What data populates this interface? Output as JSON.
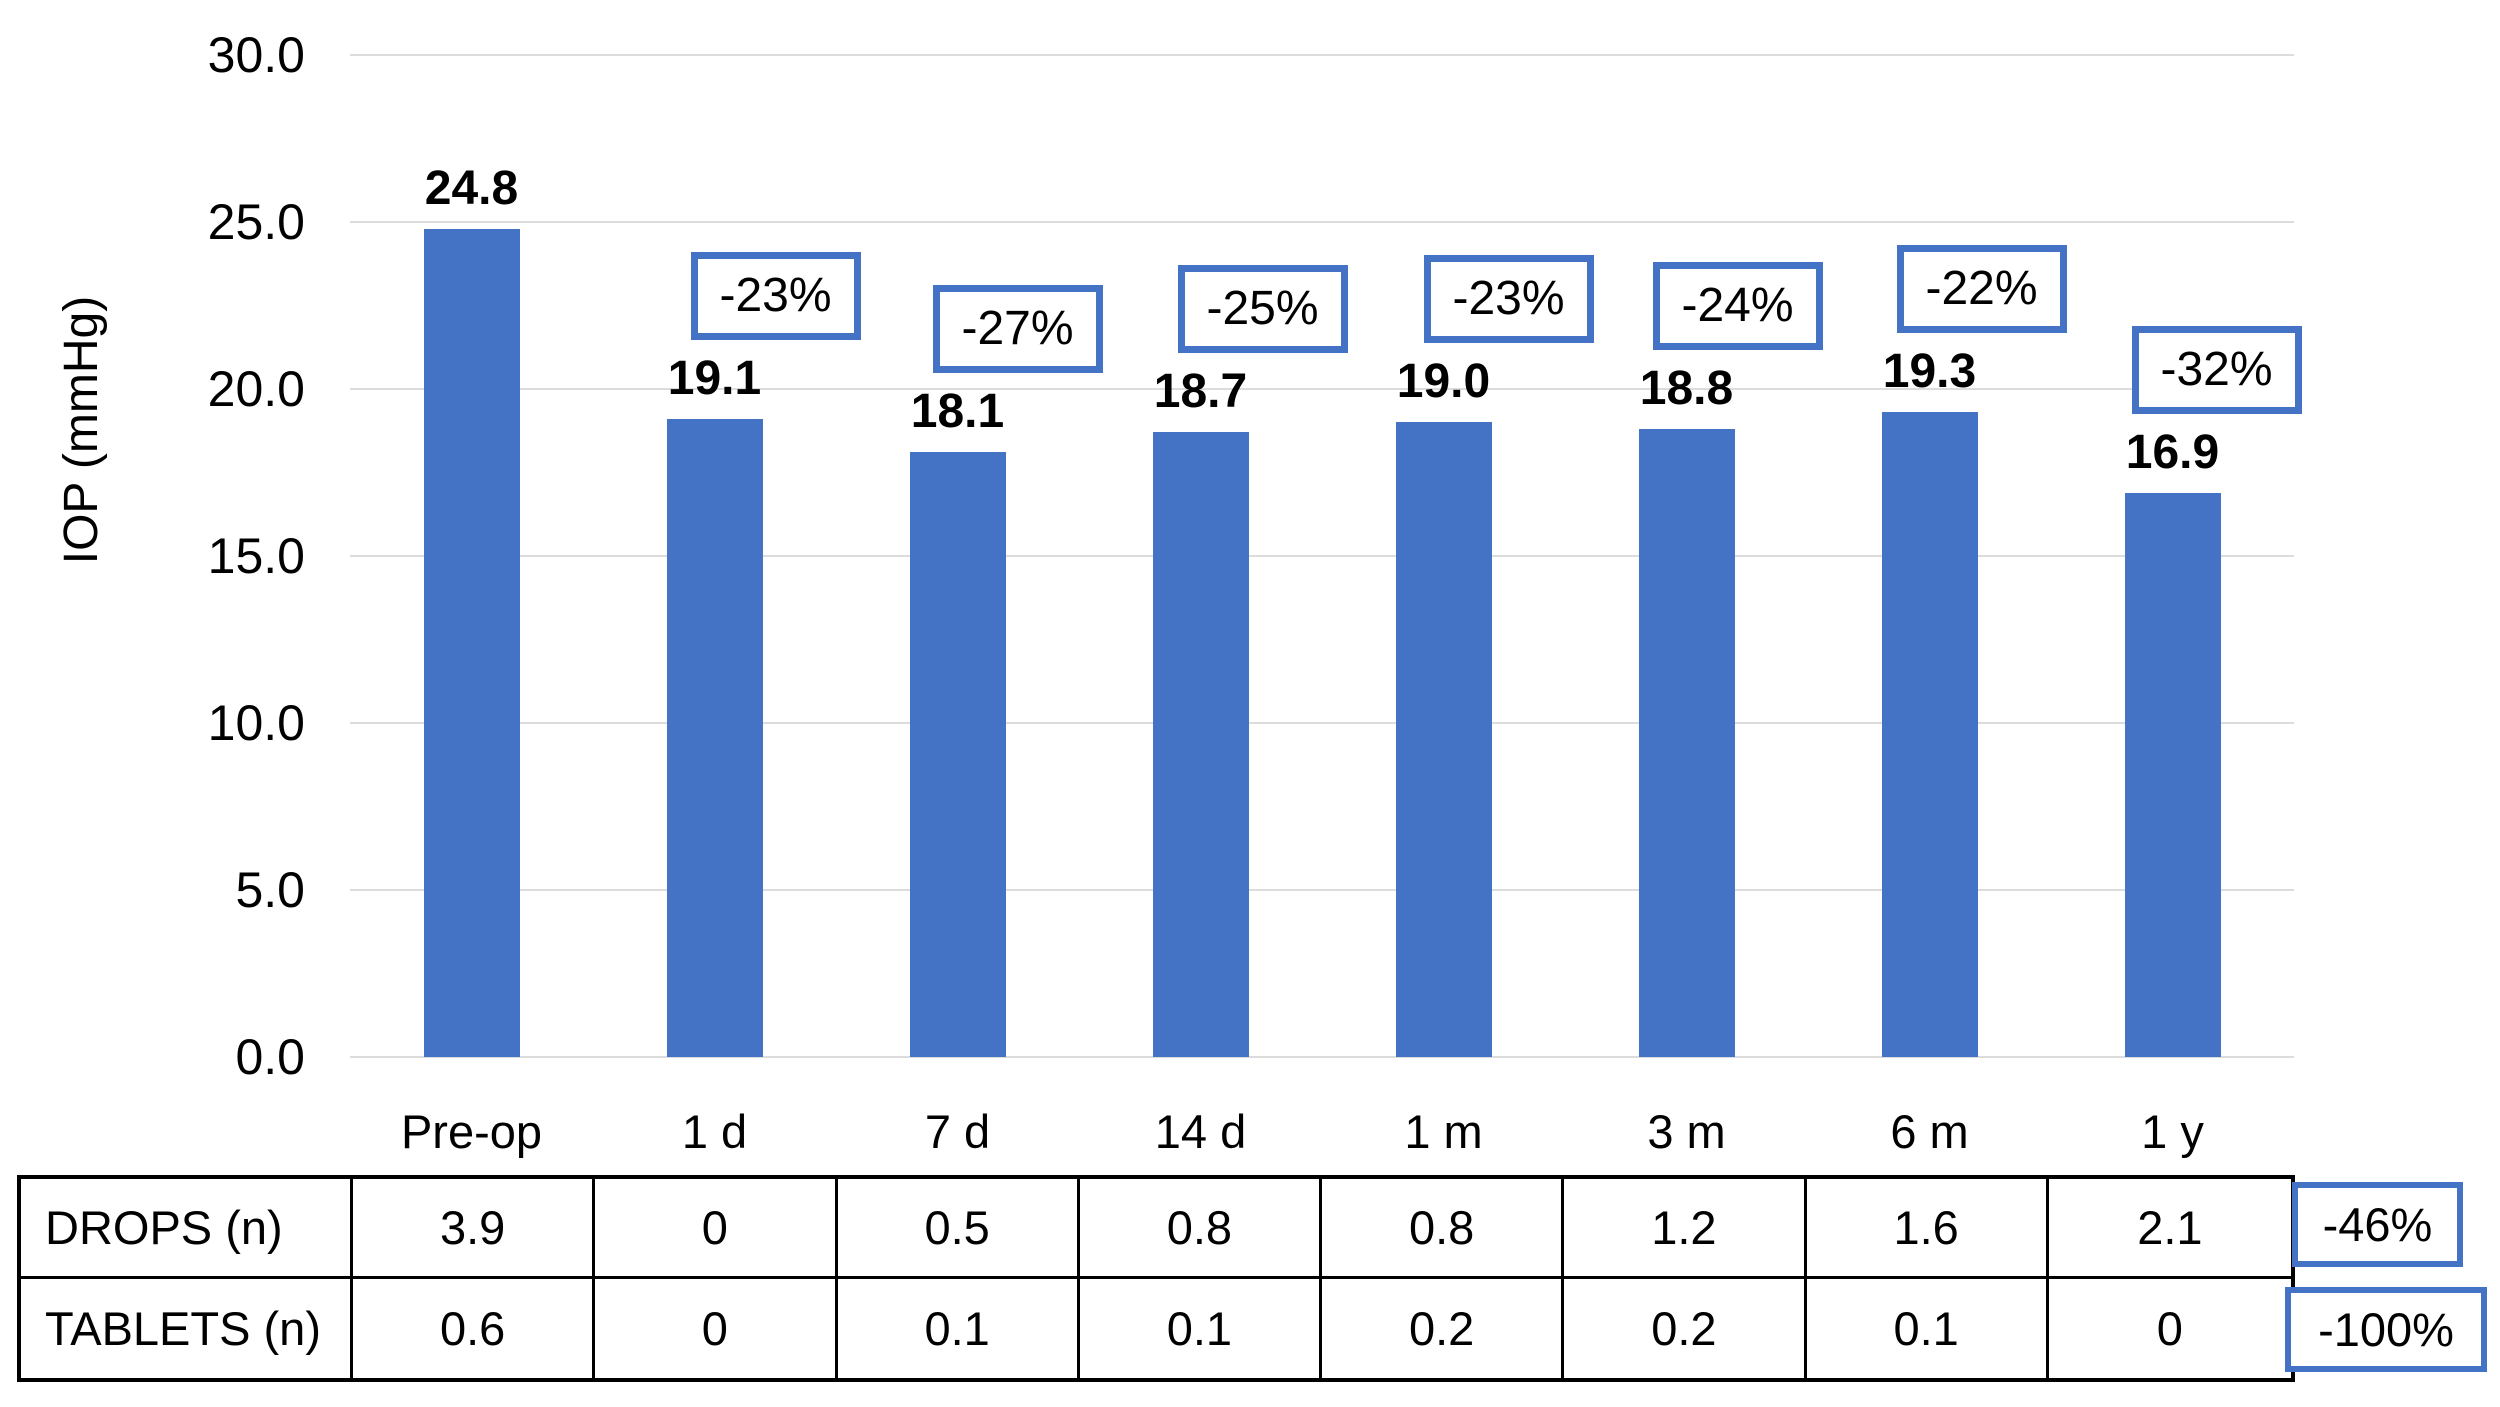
{
  "chart_data": {
    "type": "bar",
    "title": "",
    "ylabel": "IOP (mmHg)",
    "xlabel": "",
    "categories": [
      "Pre-op",
      "1 d",
      "7 d",
      "14 d",
      "1 m",
      "3 m",
      "6 m",
      "1 y"
    ],
    "values": [
      24.8,
      19.1,
      18.1,
      18.7,
      19.0,
      18.8,
      19.3,
      16.9
    ],
    "value_labels": [
      "24.8",
      "19.1",
      "18.1",
      "18.7",
      "19.0",
      "18.8",
      "19.3",
      "16.9"
    ],
    "pct_change": [
      null,
      "-23%",
      "-27%",
      "-25%",
      "-23%",
      "-24%",
      "-22%",
      "-32%"
    ],
    "ylim": [
      0,
      30
    ],
    "ytick_step": 5,
    "ytick_labels": [
      "0.0",
      "5.0",
      "10.0",
      "15.0",
      "20.0",
      "25.0",
      "30.0"
    ],
    "grid": true,
    "legend": "none",
    "colors": {
      "bar": "#4472C4",
      "callout_border": "#4472C4",
      "gridline": "#DCDCDC",
      "text": "#000000",
      "table_border": "#000000"
    },
    "table": {
      "rows": [
        {
          "label": "DROPS (n)",
          "values": [
            "3.9",
            "0",
            "0.5",
            "0.8",
            "0.8",
            "1.2",
            "1.6",
            "2.1"
          ],
          "overall_change": "-46%"
        },
        {
          "label": "TABLETS (n)",
          "values": [
            "0.6",
            "0",
            "0.1",
            "0.1",
            "0.2",
            "0.2",
            "0.1",
            "0"
          ],
          "overall_change": "-100%"
        }
      ]
    }
  }
}
